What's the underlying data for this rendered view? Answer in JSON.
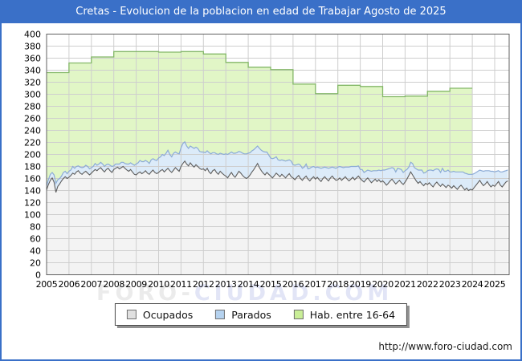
{
  "window": {
    "title": "Cretas - Evolucion de la poblacion en edad de Trabajar Agosto de 2025"
  },
  "watermark": {
    "part1": "FORO-",
    "part2": "CIUDAD.COM"
  },
  "footer": {
    "url": "http://www.foro-ciudad.com"
  },
  "colors": {
    "titlebar": "#3a70c8",
    "frame_border": "#3a70c8",
    "plot_frame": "#606060",
    "grid": "#cecece",
    "green_line": "#82b express",
    "tick_text": "#000000"
  },
  "legend": {
    "items": [
      {
        "label": "Ocupados",
        "swatch_color": "#e0e0e0"
      },
      {
        "label": "Parados",
        "swatch_color": "#b5d2ef"
      },
      {
        "label": "Hab. entre 16-64",
        "swatch_color": "#c9ee97"
      }
    ]
  },
  "chart_data": {
    "type": "area",
    "title": "Cretas - Evolucion de la poblacion en edad de Trabajar Agosto de 2025",
    "xlabel": "",
    "ylabel": "",
    "x_axis": {
      "ticks": [
        2005,
        2006,
        2007,
        2008,
        2009,
        2010,
        2011,
        2012,
        2013,
        2014,
        2015,
        2016,
        2017,
        2018,
        2019,
        2020,
        2021,
        2022,
        2023,
        2024,
        2025
      ],
      "start": 2005.0,
      "end": 2025.67,
      "grid": true
    },
    "y_axis": {
      "min": 0,
      "max": 400,
      "tick_step": 20,
      "grid": true
    },
    "legend_position": "bottom-center",
    "series": [
      {
        "name": "Hab. entre 16-64",
        "type": "annual_step_area",
        "years": [
          2005,
          2006,
          2007,
          2008,
          2009,
          2010,
          2011,
          2012,
          2013,
          2014,
          2015,
          2016,
          2017,
          2018,
          2019,
          2020,
          2021,
          2022,
          2023
        ],
        "values": [
          336,
          352,
          362,
          371,
          371,
          370,
          371,
          367,
          353,
          345,
          341,
          317,
          301,
          315,
          313,
          296,
          297,
          305,
          310
        ],
        "end_year": 2024.0,
        "line_color": "#84b868",
        "fill_color": "#e1f6c6"
      },
      {
        "name": "Ocupados",
        "type": "monthly_area",
        "start_year": 2005.0,
        "interval_months": 1,
        "values": [
          141,
          150,
          157,
          161,
          154,
          137,
          147,
          151,
          156,
          160,
          163,
          160,
          162,
          165,
          169,
          167,
          171,
          173,
          169,
          167,
          170,
          172,
          169,
          166,
          169,
          172,
          175,
          173,
          176,
          178,
          174,
          171,
          175,
          177,
          173,
          170,
          175,
          177,
          179,
          176,
          178,
          180,
          177,
          174,
          172,
          175,
          171,
          167,
          166,
          169,
          171,
          168,
          170,
          173,
          169,
          167,
          171,
          174,
          170,
          168,
          170,
          173,
          175,
          171,
          174,
          177,
          173,
          170,
          174,
          178,
          175,
          172,
          180,
          185,
          189,
          184,
          181,
          186,
          182,
          179,
          183,
          180,
          177,
          175,
          176,
          173,
          177,
          171,
          168,
          173,
          175,
          170,
          167,
          172,
          169,
          166,
          164,
          161,
          166,
          170,
          165,
          162,
          167,
          172,
          169,
          165,
          162,
          160,
          162,
          166,
          171,
          175,
          180,
          185,
          178,
          173,
          169,
          166,
          170,
          167,
          164,
          161,
          165,
          169,
          166,
          163,
          167,
          164,
          161,
          165,
          168,
          163,
          161,
          158,
          162,
          165,
          160,
          157,
          161,
          164,
          159,
          156,
          160,
          163,
          159,
          162,
          158,
          155,
          160,
          163,
          159,
          156,
          161,
          164,
          160,
          157,
          158,
          161,
          157,
          160,
          163,
          159,
          156,
          159,
          162,
          158,
          161,
          164,
          160,
          157,
          154,
          158,
          161,
          157,
          153,
          156,
          159,
          155,
          158,
          154,
          156,
          153,
          149,
          152,
          156,
          159,
          155,
          151,
          154,
          157,
          153,
          150,
          154,
          159,
          165,
          171,
          166,
          161,
          156,
          152,
          155,
          151,
          148,
          152,
          150,
          153,
          149,
          146,
          151,
          154,
          150,
          147,
          151,
          148,
          145,
          149,
          147,
          144,
          148,
          145,
          142,
          146,
          149,
          145,
          141,
          144,
          140,
          142,
          141,
          145,
          149,
          153,
          157,
          152,
          148,
          151,
          155,
          150,
          146,
          149,
          147,
          151,
          155,
          149,
          146,
          150,
          154,
          156
        ],
        "line_color": "#5e5e5e",
        "fill_color": "#f3f3f3"
      },
      {
        "name": "Parados",
        "type": "monthly_area_stacked_on_Ocupados",
        "start_year": 2005.0,
        "interval_months": 1,
        "values": [
          7,
          8,
          10,
          9,
          12,
          15,
          11,
          9,
          8,
          10,
          9,
          8,
          10,
          9,
          11,
          10,
          9,
          8,
          10,
          11,
          9,
          10,
          11,
          10,
          9,
          8,
          10,
          9,
          8,
          9,
          10,
          9,
          8,
          7,
          9,
          10,
          6,
          7,
          5,
          8,
          9,
          7,
          8,
          10,
          12,
          11,
          13,
          15,
          18,
          17,
          19,
          20,
          18,
          17,
          19,
          18,
          20,
          19,
          21,
          22,
          24,
          23,
          25,
          27,
          28,
          30,
          27,
          26,
          28,
          26,
          27,
          29,
          31,
          33,
          32,
          30,
          29,
          28,
          30,
          31,
          29,
          30,
          28,
          29,
          28,
          30,
          29,
          32,
          33,
          30,
          28,
          31,
          33,
          30,
          32,
          34,
          37,
          39,
          36,
          34,
          37,
          40,
          36,
          33,
          35,
          37,
          39,
          41,
          40,
          37,
          35,
          33,
          31,
          29,
          32,
          34,
          36,
          38,
          34,
          32,
          30,
          32,
          29,
          27,
          25,
          27,
          24,
          26,
          28,
          25,
          23,
          26,
          22,
          24,
          21,
          19,
          22,
          20,
          18,
          20,
          17,
          21,
          19,
          17,
          19,
          17,
          20,
          22,
          18,
          16,
          19,
          21,
          17,
          15,
          18,
          20,
          21,
          19,
          22,
          18,
          16,
          20,
          23,
          21,
          18,
          22,
          19,
          17,
          15,
          18,
          16,
          14,
          13,
          16,
          19,
          17,
          14,
          18,
          16,
          19,
          18,
          21,
          26,
          24,
          21,
          19,
          22,
          20,
          23,
          19,
          22,
          20,
          19,
          16,
          14,
          16,
          19,
          17,
          20,
          22,
          19,
          23,
          21,
          18,
          23,
          21,
          25,
          27,
          24,
          22,
          25,
          23,
          26,
          24,
          27,
          25,
          24,
          27,
          24,
          26,
          29,
          25,
          22,
          26,
          28,
          24,
          27,
          25,
          26,
          23,
          21,
          19,
          17,
          21,
          24,
          22,
          18,
          23,
          26,
          23,
          24,
          21,
          18,
          22,
          25,
          22,
          19,
          18
        ],
        "line_color": "#8cabd6",
        "fill_color": "#dcebf9"
      }
    ]
  }
}
